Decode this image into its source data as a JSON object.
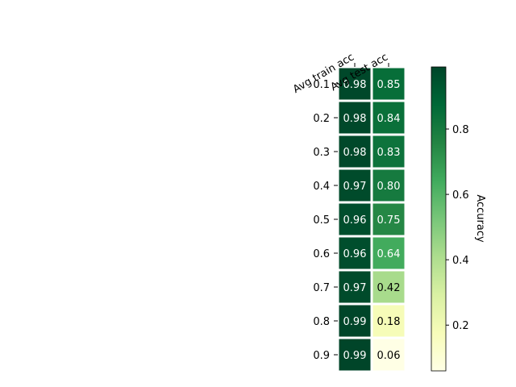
{
  "chart_data": {
    "type": "heatmap",
    "title": "",
    "columns": [
      "Avg train acc",
      "Avg test acc"
    ],
    "rows": [
      "0.1",
      "0.2",
      "0.3",
      "0.4",
      "0.5",
      "0.6",
      "0.7",
      "0.8",
      "0.9"
    ],
    "values": [
      [
        0.98,
        0.85
      ],
      [
        0.98,
        0.84
      ],
      [
        0.98,
        0.83
      ],
      [
        0.97,
        0.8
      ],
      [
        0.96,
        0.75
      ],
      [
        0.96,
        0.64
      ],
      [
        0.97,
        0.42
      ],
      [
        0.99,
        0.18
      ],
      [
        0.99,
        0.06
      ]
    ],
    "cell_labels": [
      [
        "0.98",
        "0.85"
      ],
      [
        "0.98",
        "0.84"
      ],
      [
        "0.98",
        "0.83"
      ],
      [
        "0.97",
        "0.80"
      ],
      [
        "0.96",
        "0.75"
      ],
      [
        "0.96",
        "0.64"
      ],
      [
        "0.97",
        "0.42"
      ],
      [
        "0.99",
        "0.18"
      ],
      [
        "0.99",
        "0.06"
      ]
    ],
    "colormap": "YlGn",
    "colorbar": {
      "label": "Accuracy",
      "range": [
        0.06,
        0.99
      ],
      "ticks": [
        0.2,
        0.4,
        0.6,
        0.8
      ],
      "tick_labels": [
        "0.2",
        "0.4",
        "0.6",
        "0.8"
      ]
    },
    "grid": false,
    "legend": "none"
  }
}
